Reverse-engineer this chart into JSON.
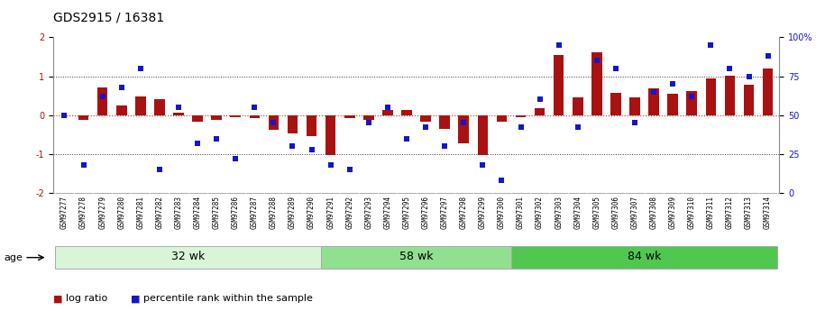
{
  "title": "GDS2915 / 16381",
  "samples": [
    "GSM97277",
    "GSM97278",
    "GSM97279",
    "GSM97280",
    "GSM97281",
    "GSM97282",
    "GSM97283",
    "GSM97284",
    "GSM97285",
    "GSM97286",
    "GSM97287",
    "GSM97288",
    "GSM97289",
    "GSM97290",
    "GSM97291",
    "GSM97292",
    "GSM97293",
    "GSM97294",
    "GSM97295",
    "GSM97296",
    "GSM97297",
    "GSM97298",
    "GSM97299",
    "GSM97300",
    "GSM97301",
    "GSM97302",
    "GSM97303",
    "GSM97304",
    "GSM97305",
    "GSM97306",
    "GSM97307",
    "GSM97308",
    "GSM97309",
    "GSM97310",
    "GSM97311",
    "GSM97312",
    "GSM97313",
    "GSM97314"
  ],
  "log_ratio": [
    0.0,
    -0.12,
    0.72,
    0.25,
    0.48,
    0.42,
    0.05,
    -0.18,
    -0.12,
    -0.05,
    -0.08,
    -0.38,
    -0.48,
    -0.55,
    -1.02,
    -0.08,
    -0.12,
    0.12,
    0.12,
    -0.18,
    -0.35,
    -0.72,
    -1.02,
    -0.18,
    -0.05,
    0.18,
    1.55,
    0.45,
    1.62,
    0.58,
    0.45,
    0.68,
    0.55,
    0.62,
    0.95,
    1.02,
    0.78,
    1.2
  ],
  "percentile": [
    50,
    18,
    62,
    68,
    80,
    15,
    55,
    32,
    35,
    22,
    55,
    45,
    30,
    28,
    18,
    15,
    45,
    55,
    35,
    42,
    30,
    45,
    18,
    8,
    42,
    60,
    95,
    42,
    85,
    80,
    45,
    65,
    70,
    62,
    95,
    80,
    75,
    88
  ],
  "groups": [
    {
      "label": "32 wk",
      "start": 0,
      "end": 14,
      "color": "#d8f5d8"
    },
    {
      "label": "58 wk",
      "start": 14,
      "end": 24,
      "color": "#90e090"
    },
    {
      "label": "84 wk",
      "start": 24,
      "end": 38,
      "color": "#50c850"
    }
  ],
  "bar_color": "#aa1111",
  "scatter_color": "#1515cc",
  "zero_line_color": "#cc2222",
  "dotted_line_color": "#333333",
  "ylim": [
    -2,
    2
  ],
  "yticks_left": [
    -2,
    -1,
    0,
    1,
    2
  ],
  "yticks_right_vals": [
    0,
    25,
    50,
    75,
    100
  ],
  "yticks_right_labels": [
    "0",
    "25",
    "50",
    "75",
    "100%"
  ],
  "background_color": "#ffffff",
  "plot_bg": "#ffffff",
  "title_fontsize": 10,
  "tick_fontsize": 5.5,
  "legend_fontsize": 8,
  "age_label": "age",
  "group_label_fontsize": 9,
  "xticklabel_bg": "#e8e8e8"
}
